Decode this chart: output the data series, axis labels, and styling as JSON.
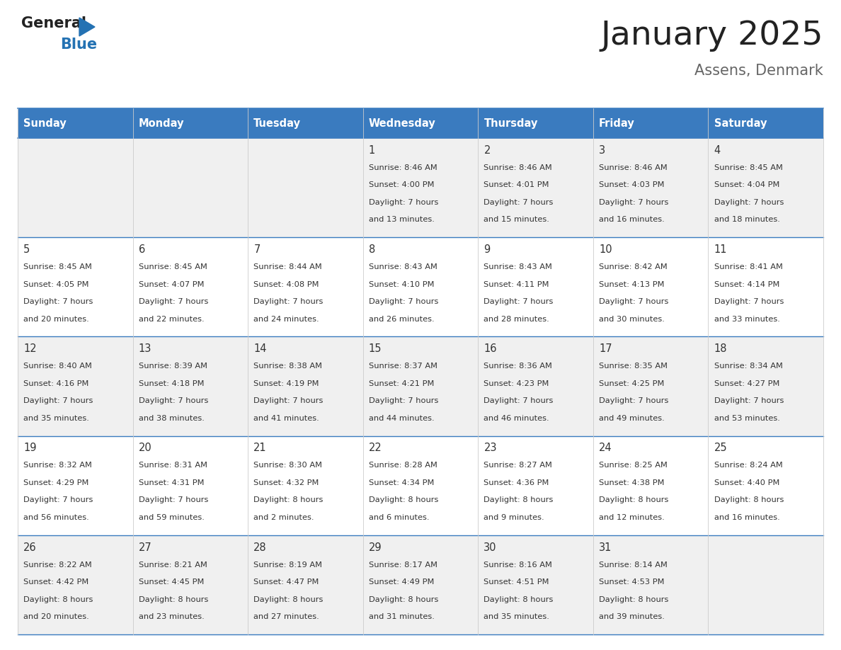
{
  "title": "January 2025",
  "subtitle": "Assens, Denmark",
  "days_of_week": [
    "Sunday",
    "Monday",
    "Tuesday",
    "Wednesday",
    "Thursday",
    "Friday",
    "Saturday"
  ],
  "header_bg": "#3a7bbf",
  "header_text": "#ffffff",
  "odd_row_bg": "#f0f0f0",
  "even_row_bg": "#ffffff",
  "cell_text": "#333333",
  "title_color": "#222222",
  "subtitle_color": "#666666",
  "blue_accent": "#2472b3",
  "logo_general_color": "#222222",
  "logo_blue_color": "#2472b3",
  "logo_triangle_color": "#2472b3",
  "border_color_blue": "#3a7bbf",
  "border_color_light": "#cccccc",
  "calendar_data": [
    [
      null,
      null,
      null,
      {
        "day": 1,
        "sunrise": "8:46 AM",
        "sunset": "4:00 PM",
        "daylight": "7 hours and 13 minutes."
      },
      {
        "day": 2,
        "sunrise": "8:46 AM",
        "sunset": "4:01 PM",
        "daylight": "7 hours and 15 minutes."
      },
      {
        "day": 3,
        "sunrise": "8:46 AM",
        "sunset": "4:03 PM",
        "daylight": "7 hours and 16 minutes."
      },
      {
        "day": 4,
        "sunrise": "8:45 AM",
        "sunset": "4:04 PM",
        "daylight": "7 hours and 18 minutes."
      }
    ],
    [
      {
        "day": 5,
        "sunrise": "8:45 AM",
        "sunset": "4:05 PM",
        "daylight": "7 hours and 20 minutes."
      },
      {
        "day": 6,
        "sunrise": "8:45 AM",
        "sunset": "4:07 PM",
        "daylight": "7 hours and 22 minutes."
      },
      {
        "day": 7,
        "sunrise": "8:44 AM",
        "sunset": "4:08 PM",
        "daylight": "7 hours and 24 minutes."
      },
      {
        "day": 8,
        "sunrise": "8:43 AM",
        "sunset": "4:10 PM",
        "daylight": "7 hours and 26 minutes."
      },
      {
        "day": 9,
        "sunrise": "8:43 AM",
        "sunset": "4:11 PM",
        "daylight": "7 hours and 28 minutes."
      },
      {
        "day": 10,
        "sunrise": "8:42 AM",
        "sunset": "4:13 PM",
        "daylight": "7 hours and 30 minutes."
      },
      {
        "day": 11,
        "sunrise": "8:41 AM",
        "sunset": "4:14 PM",
        "daylight": "7 hours and 33 minutes."
      }
    ],
    [
      {
        "day": 12,
        "sunrise": "8:40 AM",
        "sunset": "4:16 PM",
        "daylight": "7 hours and 35 minutes."
      },
      {
        "day": 13,
        "sunrise": "8:39 AM",
        "sunset": "4:18 PM",
        "daylight": "7 hours and 38 minutes."
      },
      {
        "day": 14,
        "sunrise": "8:38 AM",
        "sunset": "4:19 PM",
        "daylight": "7 hours and 41 minutes."
      },
      {
        "day": 15,
        "sunrise": "8:37 AM",
        "sunset": "4:21 PM",
        "daylight": "7 hours and 44 minutes."
      },
      {
        "day": 16,
        "sunrise": "8:36 AM",
        "sunset": "4:23 PM",
        "daylight": "7 hours and 46 minutes."
      },
      {
        "day": 17,
        "sunrise": "8:35 AM",
        "sunset": "4:25 PM",
        "daylight": "7 hours and 49 minutes."
      },
      {
        "day": 18,
        "sunrise": "8:34 AM",
        "sunset": "4:27 PM",
        "daylight": "7 hours and 53 minutes."
      }
    ],
    [
      {
        "day": 19,
        "sunrise": "8:32 AM",
        "sunset": "4:29 PM",
        "daylight": "7 hours and 56 minutes."
      },
      {
        "day": 20,
        "sunrise": "8:31 AM",
        "sunset": "4:31 PM",
        "daylight": "7 hours and 59 minutes."
      },
      {
        "day": 21,
        "sunrise": "8:30 AM",
        "sunset": "4:32 PM",
        "daylight": "8 hours and 2 minutes."
      },
      {
        "day": 22,
        "sunrise": "8:28 AM",
        "sunset": "4:34 PM",
        "daylight": "8 hours and 6 minutes."
      },
      {
        "day": 23,
        "sunrise": "8:27 AM",
        "sunset": "4:36 PM",
        "daylight": "8 hours and 9 minutes."
      },
      {
        "day": 24,
        "sunrise": "8:25 AM",
        "sunset": "4:38 PM",
        "daylight": "8 hours and 12 minutes."
      },
      {
        "day": 25,
        "sunrise": "8:24 AM",
        "sunset": "4:40 PM",
        "daylight": "8 hours and 16 minutes."
      }
    ],
    [
      {
        "day": 26,
        "sunrise": "8:22 AM",
        "sunset": "4:42 PM",
        "daylight": "8 hours and 20 minutes."
      },
      {
        "day": 27,
        "sunrise": "8:21 AM",
        "sunset": "4:45 PM",
        "daylight": "8 hours and 23 minutes."
      },
      {
        "day": 28,
        "sunrise": "8:19 AM",
        "sunset": "4:47 PM",
        "daylight": "8 hours and 27 minutes."
      },
      {
        "day": 29,
        "sunrise": "8:17 AM",
        "sunset": "4:49 PM",
        "daylight": "8 hours and 31 minutes."
      },
      {
        "day": 30,
        "sunrise": "8:16 AM",
        "sunset": "4:51 PM",
        "daylight": "8 hours and 35 minutes."
      },
      {
        "day": 31,
        "sunrise": "8:14 AM",
        "sunset": "4:53 PM",
        "daylight": "8 hours and 39 minutes."
      },
      null
    ]
  ]
}
